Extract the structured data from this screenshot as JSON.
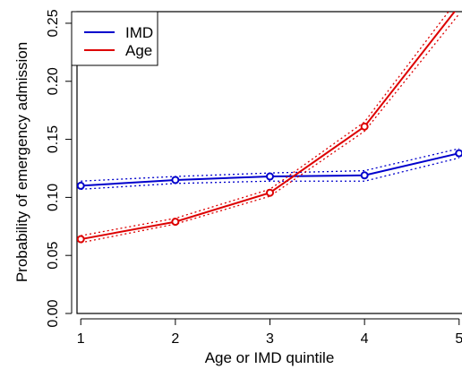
{
  "chart_data": {
    "type": "line",
    "title": "",
    "xlabel": "Age or IMD quintile",
    "ylabel": "Probability of emergency admission",
    "x": [
      1,
      2,
      3,
      4,
      5
    ],
    "xticks": [
      "1",
      "2",
      "3",
      "4",
      "5"
    ],
    "yticks": [
      "0.00",
      "0.05",
      "0.10",
      "0.15",
      "0.20",
      "0.25"
    ],
    "xlim": [
      0.96,
      5.04
    ],
    "ylim": [
      0.0,
      0.26
    ],
    "grid": false,
    "legend_position": "top-left",
    "series": [
      {
        "name": "IMD",
        "color": "#0000cc",
        "values": [
          0.11,
          0.115,
          0.118,
          0.119,
          0.138
        ],
        "ci_lower": [
          0.107,
          0.112,
          0.114,
          0.114,
          0.134
        ],
        "ci_upper": [
          0.114,
          0.118,
          0.121,
          0.123,
          0.142
        ]
      },
      {
        "name": "Age",
        "color": "#dd0000",
        "values": [
          0.064,
          0.079,
          0.104,
          0.161,
          0.265
        ],
        "ci_lower": [
          0.061,
          0.077,
          0.101,
          0.157,
          0.258
        ],
        "ci_upper": [
          0.067,
          0.082,
          0.107,
          0.165,
          0.272
        ]
      }
    ]
  }
}
